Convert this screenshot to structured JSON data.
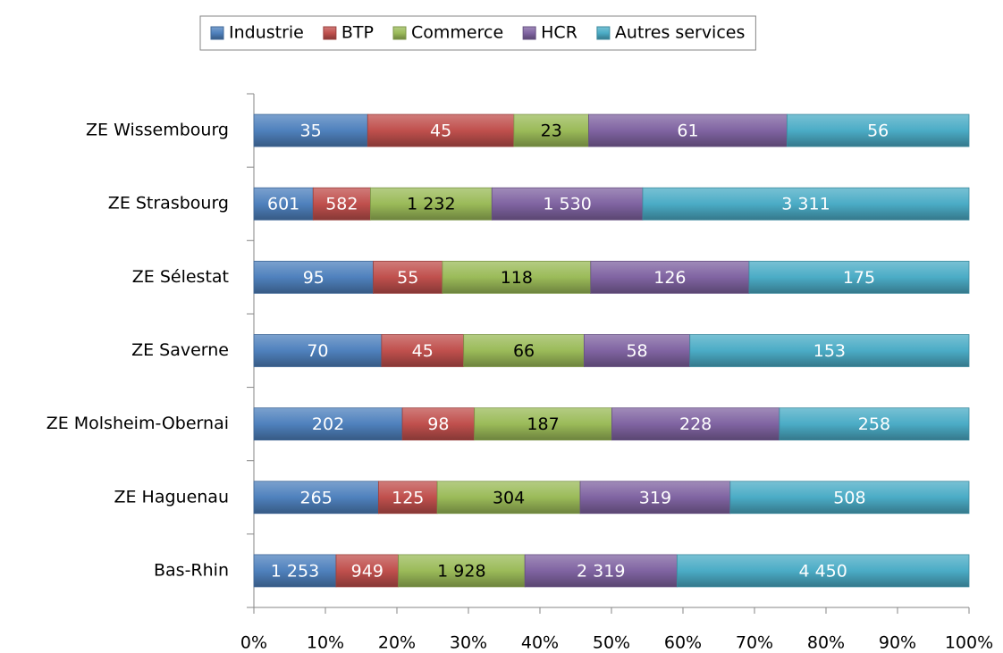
{
  "chart_data": {
    "type": "bar",
    "stacked": "percent",
    "orientation": "horizontal",
    "legend": "top",
    "categories": [
      "ZE Wissembourg",
      "ZE Strasbourg",
      "ZE Sélestat",
      "ZE Saverne",
      "ZE Molsheim-Obernai",
      "ZE Haguenau",
      "Bas-Rhin"
    ],
    "series": [
      {
        "name": "Industrie",
        "color": "#4f81bd",
        "values": [
          35,
          601,
          95,
          70,
          202,
          265,
          1253
        ],
        "value_labels": [
          "35",
          "601",
          "95",
          "70",
          "202",
          "265",
          "1 253"
        ]
      },
      {
        "name": "BTP",
        "color": "#c0504d",
        "values": [
          45,
          582,
          55,
          45,
          98,
          125,
          949
        ],
        "value_labels": [
          "45",
          "582",
          "55",
          "45",
          "98",
          "125",
          "949"
        ]
      },
      {
        "name": "Commerce",
        "color": "#9bbb59",
        "values": [
          23,
          1232,
          118,
          66,
          187,
          304,
          1928
        ],
        "value_labels": [
          "23",
          "1 232",
          "118",
          "66",
          "187",
          "304",
          "1 928"
        ]
      },
      {
        "name": "HCR",
        "color": "#8064a2",
        "values": [
          61,
          1530,
          126,
          58,
          228,
          319,
          2319
        ],
        "value_labels": [
          "61",
          "1 530",
          "126",
          "58",
          "228",
          "319",
          "2 319"
        ]
      },
      {
        "name": "Autres services",
        "color": "#4bacc6",
        "values": [
          56,
          3311,
          175,
          153,
          258,
          508,
          4450
        ],
        "value_labels": [
          "56",
          "3 311",
          "175",
          "153",
          "258",
          "508",
          "4 450"
        ]
      }
    ],
    "xlim": [
      0,
      100
    ],
    "xticks": [
      {
        "value": 0,
        "label": "0%"
      },
      {
        "value": 10,
        "label": "10%"
      },
      {
        "value": 20,
        "label": "20%"
      },
      {
        "value": 30,
        "label": "30%"
      },
      {
        "value": 40,
        "label": "40%"
      },
      {
        "value": 50,
        "label": "50%"
      },
      {
        "value": 60,
        "label": "60%"
      },
      {
        "value": 70,
        "label": "70%"
      },
      {
        "value": 80,
        "label": "80%"
      },
      {
        "value": 90,
        "label": "90%"
      },
      {
        "value": 100,
        "label": "100%"
      }
    ]
  }
}
